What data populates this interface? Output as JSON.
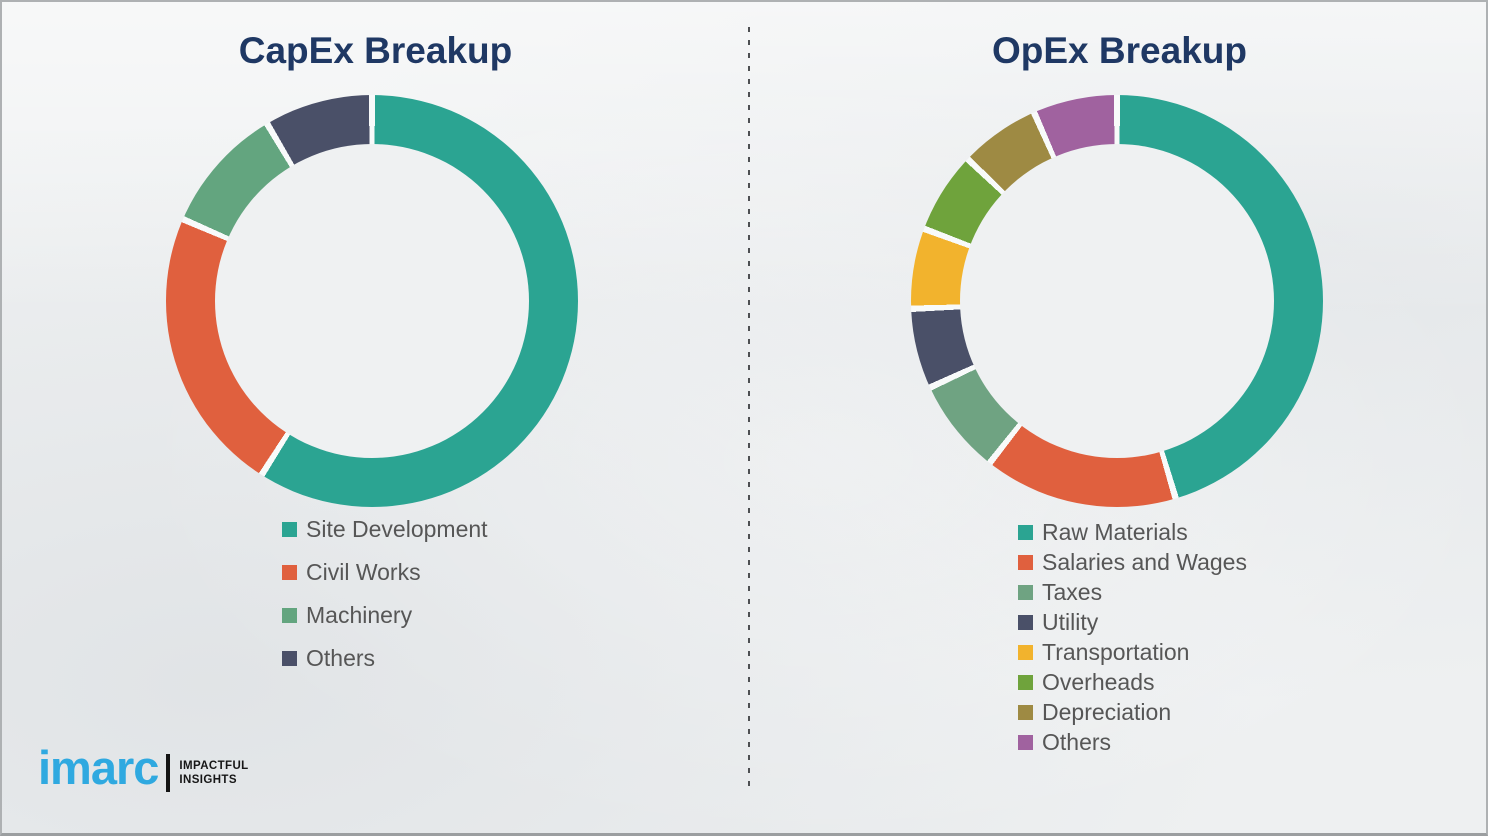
{
  "page": {
    "background_color": "#eef0f1",
    "divider_style": "vertical dashed line",
    "divider_color": "#4d4f52",
    "title_color": "#1f3864",
    "legend_text_color": "#565656"
  },
  "logo": {
    "brand": "imarc",
    "brand_color": "#2fa9e0",
    "tagline_line1": "IMPACTFUL",
    "tagline_line2": "INSIGHTS"
  },
  "chart_data": [
    {
      "type": "pie",
      "variant": "donut",
      "title": "CapEx Breakup",
      "start_angle_deg": 0,
      "direction": "clockwise",
      "legend_position": "below-left",
      "slices": [
        {
          "label": "Site Development",
          "value": 59,
          "color": "#2ba492"
        },
        {
          "label": "Civil Works",
          "value": 22.5,
          "color": "#e0603e"
        },
        {
          "label": "Machinery",
          "value": 10,
          "color": "#63a57f"
        },
        {
          "label": "Others",
          "value": 8.5,
          "color": "#4a5068"
        }
      ]
    },
    {
      "type": "pie",
      "variant": "donut",
      "title": "OpEx Breakup",
      "start_angle_deg": 0,
      "direction": "clockwise",
      "legend_position": "below-left",
      "slices": [
        {
          "label": "Raw Materials",
          "value": 45.4,
          "color": "#2ba492"
        },
        {
          "label": "Salaries and Wages",
          "value": 15.2,
          "color": "#e0603e"
        },
        {
          "label": "Taxes",
          "value": 7.5,
          "color": "#6fa382"
        },
        {
          "label": "Utility",
          "value": 6.3,
          "color": "#4a5068"
        },
        {
          "label": "Transportation",
          "value": 6.3,
          "color": "#f2b32d"
        },
        {
          "label": "Overheads",
          "value": 6.4,
          "color": "#6fa33c"
        },
        {
          "label": "Depreciation",
          "value": 6.3,
          "color": "#9e8a43"
        },
        {
          "label": "Others",
          "value": 6.6,
          "color": "#a0629f"
        }
      ]
    }
  ]
}
